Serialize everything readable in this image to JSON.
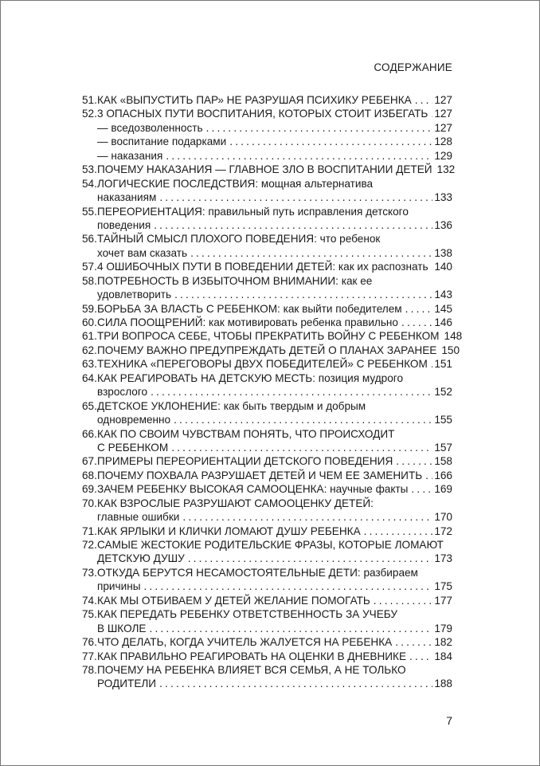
{
  "header": "СОДЕРЖАНИЕ",
  "page_number": "7",
  "entries": [
    {
      "num": "51.",
      "lines": [
        "КАК «ВЫПУСТИТЬ ПАР» НЕ РАЗРУШАЯ ПСИХИКУ РЕБЕНКА"
      ],
      "page": "127"
    },
    {
      "num": "52.",
      "lines": [
        "3 ОПАСНЫХ ПУТИ ВОСПИТАНИЯ, КОТОРЫХ СТОИТ ИЗБЕГАТЬ"
      ],
      "page": "127"
    },
    {
      "num": "",
      "sub": true,
      "lines": [
        "— вседозволенность"
      ],
      "page": "127"
    },
    {
      "num": "",
      "sub": true,
      "lines": [
        "— воспитание подарками"
      ],
      "page": "128"
    },
    {
      "num": "",
      "sub": true,
      "lines": [
        "— наказания"
      ],
      "page": "129"
    },
    {
      "num": "53.",
      "lines": [
        "ПОЧЕМУ НАКАЗАНИЯ — ГЛАВНОЕ ЗЛО В ВОСПИТАНИИ ДЕТЕЙ"
      ],
      "page": "132"
    },
    {
      "num": "54.",
      "lines": [
        "ЛОГИЧЕСКИЕ ПОСЛЕДСТВИЯ: мощная альтернатива",
        "наказаниям"
      ],
      "page": "133"
    },
    {
      "num": "55.",
      "lines": [
        "ПЕРЕОРИЕНТАЦИЯ: правильный путь исправления детского",
        "поведения"
      ],
      "page": "136"
    },
    {
      "num": "56.",
      "lines": [
        "ТАЙНЫЙ СМЫСЛ ПЛОХОГО ПОВЕДЕНИЯ: что ребенок",
        "хочет вам сказать"
      ],
      "page": "138"
    },
    {
      "num": "57.",
      "lines": [
        "4 ОШИБОЧНЫХ ПУТИ В ПОВЕДЕНИИ ДЕТЕЙ: как их распознать"
      ],
      "page": "140"
    },
    {
      "num": "58.",
      "lines": [
        "ПОТРЕБНОСТЬ В ИЗБЫТОЧНОМ ВНИМАНИИ: как ее",
        "удовлетворить"
      ],
      "page": "143"
    },
    {
      "num": "59.",
      "lines": [
        "БОРЬБА ЗА ВЛАСТЬ С РЕБЕНКОМ: как выйти победителем"
      ],
      "page": "145"
    },
    {
      "num": "60.",
      "lines": [
        "СИЛА ПООЩРЕНИЙ: как мотивировать ребенка правильно"
      ],
      "page": "146"
    },
    {
      "num": "61.",
      "lines": [
        "ТРИ ВОПРОСА СЕБЕ, ЧТОБЫ ПРЕКРАТИТЬ ВОЙНУ С РЕБЕНКОМ"
      ],
      "page": "148"
    },
    {
      "num": "62.",
      "lines": [
        "ПОЧЕМУ ВАЖНО ПРЕДУПРЕЖДАТЬ ДЕТЕЙ О ПЛАНАХ ЗАРАНЕЕ"
      ],
      "page": "150"
    },
    {
      "num": "63.",
      "lines": [
        "ТЕХНИКА «ПЕРЕГОВОРЫ ДВУХ ПОБЕДИТЕЛЕЙ» С РЕБЕНКОМ"
      ],
      "page": "151"
    },
    {
      "num": "64.",
      "lines": [
        "КАК РЕАГИРОВАТЬ НА ДЕТСКУЮ МЕСТЬ: позиция мудрого",
        "взрослого"
      ],
      "page": "152"
    },
    {
      "num": "65.",
      "lines": [
        "ДЕТСКОЕ УКЛОНЕНИЕ: как быть твердым и добрым",
        "одновременно"
      ],
      "page": "155"
    },
    {
      "num": "66.",
      "lines": [
        "КАК ПО СВОИМ ЧУВСТВАМ ПОНЯТЬ, ЧТО ПРОИСХОДИТ",
        "С РЕБЕНКОМ"
      ],
      "page": "157"
    },
    {
      "num": "67.",
      "lines": [
        "ПРИМЕРЫ ПЕРЕОРИЕНТАЦИИ ДЕТСКОГО ПОВЕДЕНИЯ"
      ],
      "page": "158"
    },
    {
      "num": "68.",
      "lines": [
        "ПОЧЕМУ ПОХВАЛА РАЗРУШАЕТ ДЕТЕЙ И ЧЕМ ЕЕ ЗАМЕНИТЬ"
      ],
      "page": "166"
    },
    {
      "num": "69.",
      "lines": [
        "ЗАЧЕМ РЕБЕНКУ ВЫСОКАЯ САМООЦЕНКА: научные факты"
      ],
      "page": "169"
    },
    {
      "num": "70.",
      "lines": [
        "КАК ВЗРОСЛЫЕ РАЗРУШАЮТ САМООЦЕНКУ ДЕТЕЙ:",
        "главные ошибки"
      ],
      "page": "170"
    },
    {
      "num": "71.",
      "lines": [
        "КАК ЯРЛЫКИ И КЛИЧКИ ЛОМАЮТ ДУШУ РЕБЕНКА"
      ],
      "page": "172"
    },
    {
      "num": "72.",
      "lines": [
        "САМЫЕ ЖЕСТОКИЕ РОДИТЕЛЬСКИЕ ФРАЗЫ, КОТОРЫЕ ЛОМАЮТ",
        "ДЕТСКУЮ ДУШУ"
      ],
      "page": "173"
    },
    {
      "num": "73.",
      "lines": [
        "ОТКУДА БЕРУТСЯ НЕСАМОСТОЯТЕЛЬНЫЕ ДЕТИ: разбираем",
        "причины"
      ],
      "page": "175"
    },
    {
      "num": "74.",
      "lines": [
        "КАК МЫ ОТБИВАЕМ У ДЕТЕЙ ЖЕЛАНИЕ ПОМОГАТЬ"
      ],
      "page": "177"
    },
    {
      "num": "75.",
      "lines": [
        "КАК ПЕРЕДАТЬ РЕБЕНКУ ОТВЕТСТВЕННОСТЬ ЗА УЧЕБУ",
        "В ШКОЛЕ"
      ],
      "page": "179"
    },
    {
      "num": "76.",
      "lines": [
        "ЧТО ДЕЛАТЬ, КОГДА УЧИТЕЛЬ ЖАЛУЕТСЯ НА РЕБЕНКА"
      ],
      "page": "182"
    },
    {
      "num": "77.",
      "lines": [
        "КАК ПРАВИЛЬНО РЕАГИРОВАТЬ НА ОЦЕНКИ В ДНЕВНИКЕ"
      ],
      "page": "184"
    },
    {
      "num": "78.",
      "lines": [
        "ПОЧЕМУ НА РЕБЕНКА ВЛИЯЕТ ВСЯ СЕМЬЯ, А НЕ ТОЛЬКО",
        "РОДИТЕЛИ"
      ],
      "page": "188"
    }
  ]
}
